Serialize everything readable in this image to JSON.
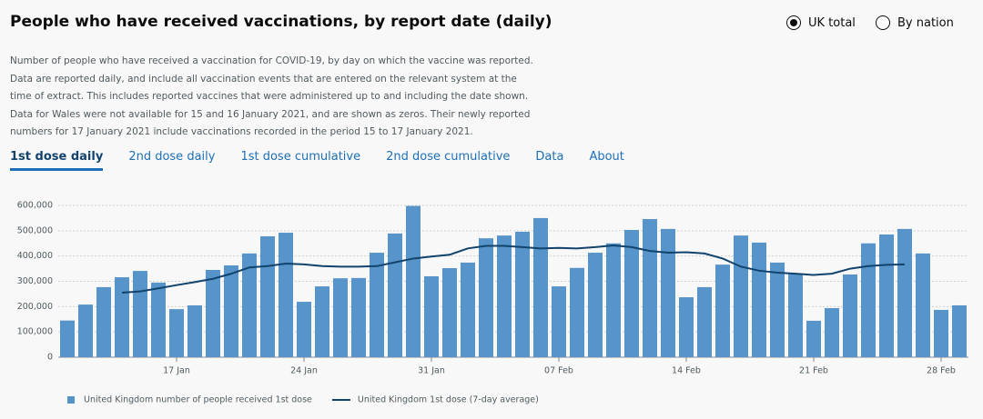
{
  "header": {
    "title": "People who have received vaccinations, by report date (daily)",
    "options": [
      {
        "label": "UK total",
        "selected": true
      },
      {
        "label": "By nation",
        "selected": false
      }
    ]
  },
  "description": [
    "Number of people who have received a vaccination for COVID-19, by day on which the vaccine was reported.",
    "Data are reported daily, and include all vaccination events that are entered on the relevant system at the",
    "time of extract. This includes reported vaccines that were administered up to and including the date shown.",
    "Data for Wales were not available for 15 and 16 January 2021, and are shown as zeros. Their newly reported",
    "numbers for 17 January 2021 include vaccinations recorded in the period 15 to 17 January 2021."
  ],
  "tabs": [
    "1st dose daily",
    "2nd dose daily",
    "1st dose cumulative",
    "2nd dose cumulative",
    "Data",
    "About"
  ],
  "active_tab": 0,
  "chart_data": {
    "type": "bar",
    "categories": [
      null,
      null,
      null,
      null,
      null,
      null,
      "17 Jan",
      null,
      null,
      null,
      null,
      null,
      null,
      "24 Jan",
      null,
      null,
      null,
      null,
      null,
      null,
      "31 Jan",
      null,
      null,
      null,
      null,
      null,
      null,
      "07 Feb",
      null,
      null,
      null,
      null,
      null,
      null,
      "14 Feb",
      null,
      null,
      null,
      null,
      null,
      null,
      "21 Feb",
      null,
      null,
      null,
      null,
      null,
      null,
      "28 Feb",
      null
    ],
    "series": [
      {
        "name": "United Kingdom number of people received 1st dose",
        "type": "bar",
        "color": "#5694ca",
        "values": [
          145000,
          208000,
          277000,
          316000,
          341000,
          295000,
          190000,
          205000,
          345000,
          363000,
          410000,
          478000,
          492000,
          219000,
          280000,
          312000,
          313000,
          413000,
          489000,
          598000,
          320000,
          352000,
          374000,
          470000,
          481000,
          496000,
          550000,
          280000,
          353000,
          413000,
          450000,
          503000,
          546000,
          507000,
          237000,
          277000,
          366000,
          481000,
          453000,
          374000,
          331000,
          144000,
          194000,
          327000,
          450000,
          485000,
          507000,
          410000,
          187000,
          205000
        ]
      },
      {
        "name": "United Kingdom 1st dose (7-day average)",
        "type": "line",
        "color": "#12436d",
        "values": [
          null,
          null,
          null,
          255000,
          260000,
          272000,
          285000,
          297000,
          310000,
          330000,
          355000,
          360000,
          370000,
          367000,
          360000,
          358000,
          358000,
          360000,
          375000,
          390000,
          398000,
          405000,
          430000,
          440000,
          440000,
          435000,
          430000,
          432000,
          430000,
          435000,
          442000,
          435000,
          420000,
          413000,
          415000,
          410000,
          390000,
          358000,
          342000,
          334000,
          330000,
          325000,
          330000,
          350000,
          360000,
          365000,
          367000,
          null,
          null,
          null
        ]
      }
    ],
    "ylim": [
      0,
      600000
    ],
    "yticks": [
      0,
      {
        "value": 100000,
        "label": "100,000"
      },
      {
        "value": 200000,
        "label": "200,000"
      },
      {
        "value": 300000,
        "label": "300,000"
      },
      {
        "value": 400000,
        "label": "400,000"
      },
      {
        "value": 500000,
        "label": "500,000"
      },
      {
        "value": 600000,
        "label": "600,000"
      }
    ],
    "grid": true
  }
}
